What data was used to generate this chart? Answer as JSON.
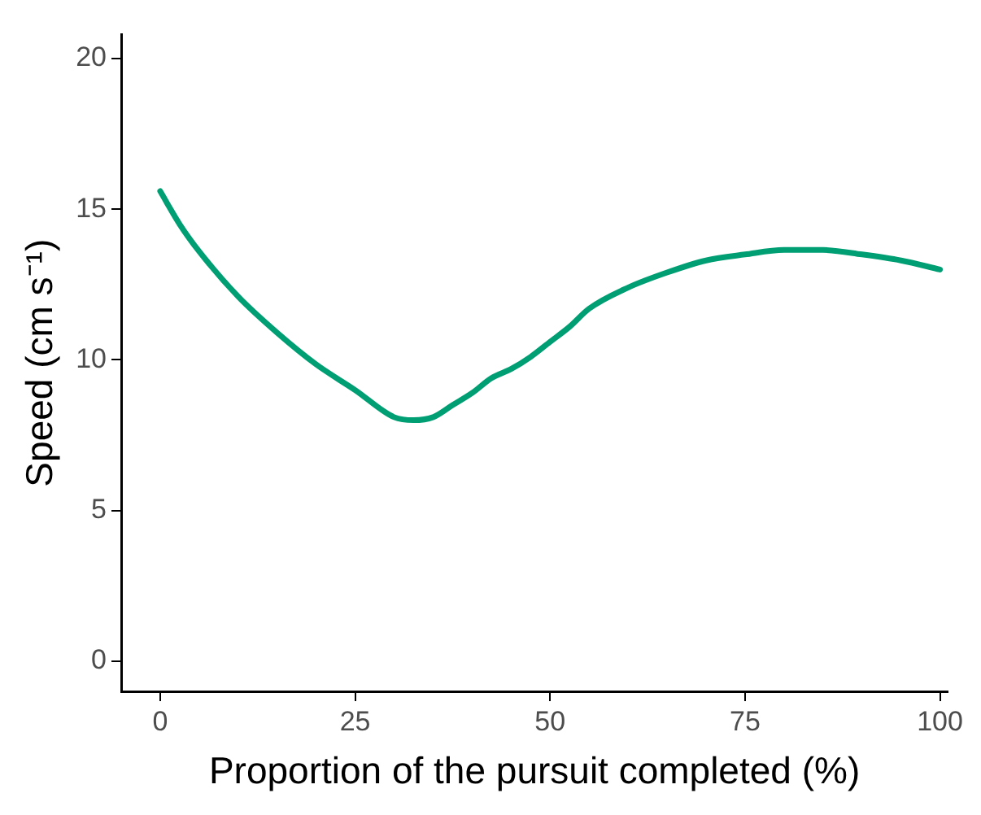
{
  "chart_data": {
    "type": "line",
    "xlabel": "Proportion of the pursuit completed (%)",
    "ylabel": "Speed (cm s⁻¹)",
    "xlim": [
      -5,
      101
    ],
    "ylim": [
      -1,
      20.8
    ],
    "xticks": [
      0,
      25,
      50,
      75,
      100
    ],
    "yticks": [
      0,
      5,
      10,
      15,
      20
    ],
    "marker": "none",
    "legend": false,
    "series": [
      {
        "color": "#009e73",
        "x": [
          0,
          2.5,
          5,
          10,
          15,
          20,
          25,
          30,
          32.5,
          35,
          37.5,
          40,
          42.5,
          45,
          47.5,
          50,
          52.5,
          55,
          60,
          65,
          70,
          75,
          80,
          85,
          90,
          95,
          100
        ],
        "values": [
          15.6,
          14.5,
          13.6,
          12.1,
          10.9,
          9.85,
          9.0,
          8.1,
          8.0,
          8.1,
          8.5,
          8.9,
          9.4,
          9.7,
          10.1,
          10.6,
          11.1,
          11.7,
          12.4,
          12.9,
          13.3,
          13.5,
          13.65,
          13.65,
          13.5,
          13.3,
          13.0
        ]
      }
    ]
  }
}
